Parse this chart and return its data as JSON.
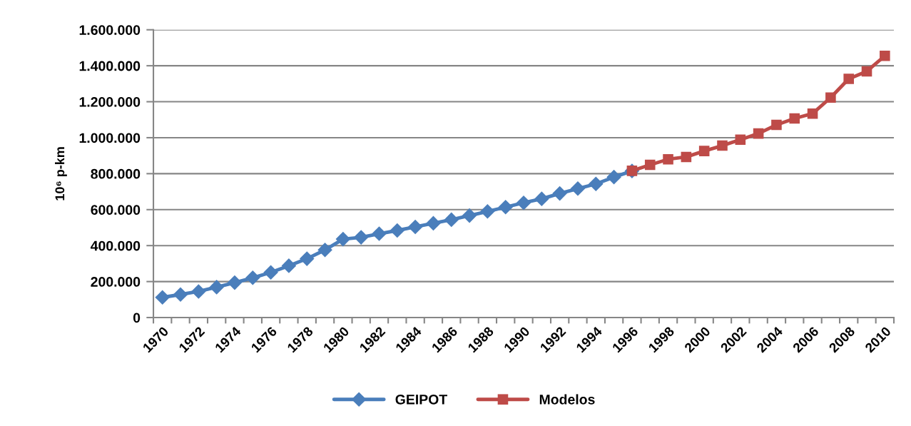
{
  "chart_data": {
    "type": "line",
    "categories": [
      "1970",
      null,
      "1972",
      null,
      "1974",
      null,
      "1976",
      null,
      "1978",
      null,
      "1980",
      null,
      "1982",
      null,
      "1984",
      null,
      "1986",
      null,
      "1988",
      null,
      "1990",
      null,
      "1992",
      null,
      "1994",
      null,
      "1996",
      null,
      "1998",
      null,
      "2000",
      null,
      "2002",
      null,
      "2004",
      null,
      "2006",
      null,
      "2008",
      null,
      "2010"
    ],
    "series": [
      {
        "name": "GEIPOT",
        "color": "#4a7ebb",
        "marker": "diamond",
        "values": [
          112000,
          128000,
          145000,
          169000,
          194000,
          221000,
          251000,
          288000,
          327000,
          376000,
          436000,
          446000,
          466000,
          484000,
          504000,
          524000,
          544000,
          567000,
          590000,
          614000,
          638000,
          660000,
          690000,
          717000,
          743000,
          781000,
          815000,
          null,
          null,
          null,
          null,
          null,
          null,
          null,
          null,
          null,
          null,
          null,
          null,
          null,
          null
        ]
      },
      {
        "name": "Modelos",
        "color": "#be4b48",
        "marker": "square",
        "values": [
          null,
          null,
          null,
          null,
          null,
          null,
          null,
          null,
          null,
          null,
          null,
          null,
          null,
          null,
          null,
          null,
          null,
          null,
          null,
          null,
          null,
          null,
          null,
          null,
          null,
          null,
          816000,
          849000,
          880000,
          893000,
          926000,
          956000,
          989000,
          1023000,
          1071000,
          1107000,
          1134000,
          1223000,
          1327000,
          1369000,
          1455000
        ]
      }
    ],
    "ylabel": "10⁶ p-km",
    "ylim": [
      0,
      1600000
    ],
    "yticks": [
      0,
      {
        "value": 200000,
        "label": "200.000"
      },
      {
        "value": 400000,
        "label": "400.000"
      },
      {
        "value": 600000,
        "label": "600.000"
      },
      {
        "value": 800000,
        "label": "800.000"
      },
      {
        "value": 1000000,
        "label": "1.000.000"
      },
      {
        "value": 1200000,
        "label": "1.200.000"
      },
      {
        "value": 1400000,
        "label": "1.400.000"
      },
      {
        "value": 1600000,
        "label": "1.600.000"
      }
    ],
    "grid": "y",
    "legend": "bottom",
    "line_style": "solid"
  }
}
